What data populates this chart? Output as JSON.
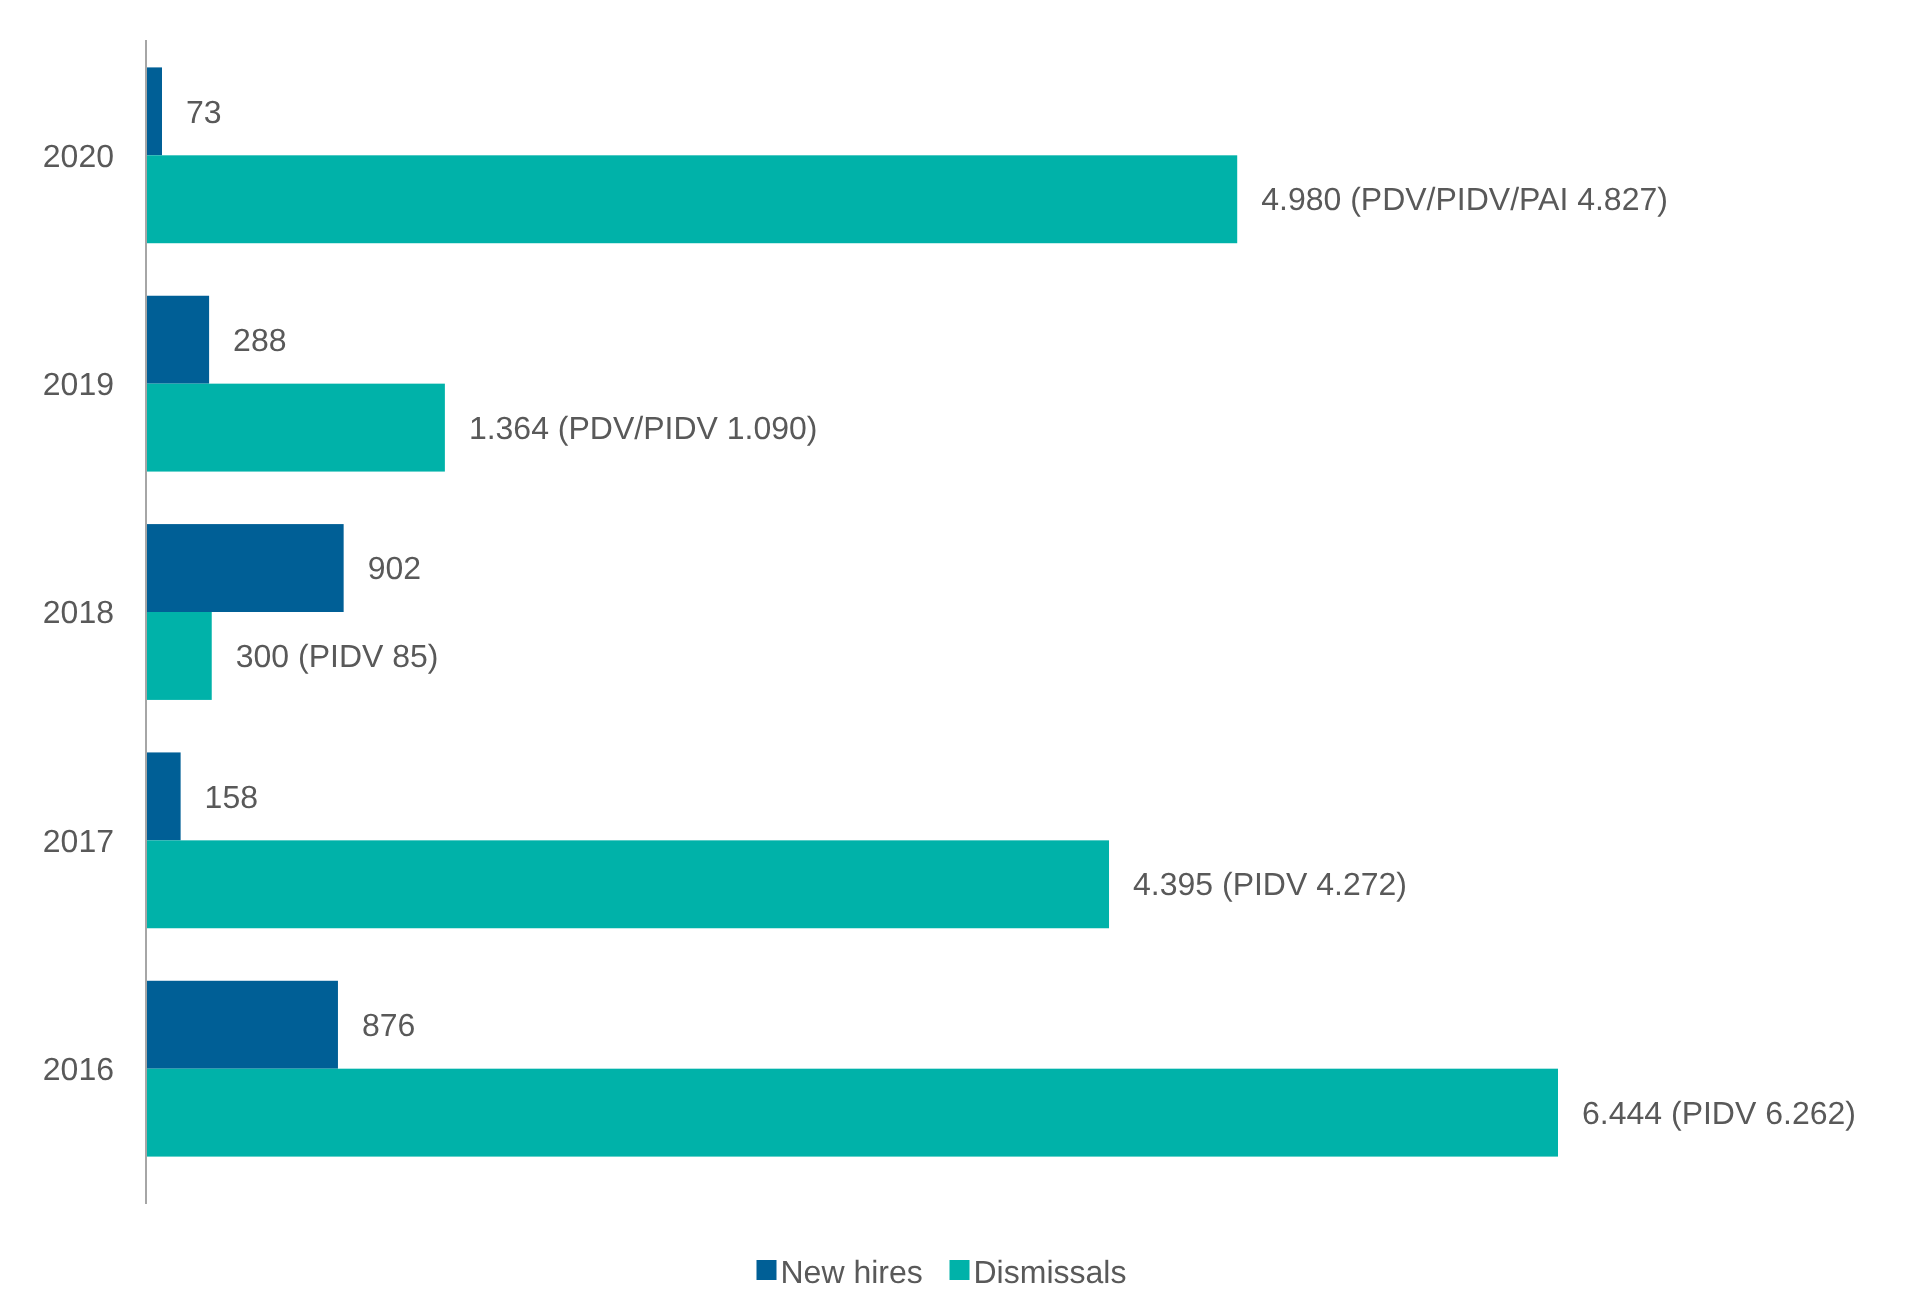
{
  "chart_data": {
    "type": "bar",
    "orientation": "horizontal",
    "categories": [
      "2020",
      "2019",
      "2018",
      "2017",
      "2016"
    ],
    "series": [
      {
        "name": "New hires",
        "color": "#005f96",
        "values": [
          73,
          288,
          902,
          158,
          876
        ],
        "value_labels": [
          "73",
          "288",
          "902",
          "158",
          "876"
        ]
      },
      {
        "name": "Dismissals",
        "color": "#00b2a9",
        "values": [
          4980,
          1364,
          300,
          4395,
          6444
        ],
        "value_labels": [
          "4.980 (PDV/PIDV/PAI 4.827)",
          "1.364 (PDV/PIDV 1.090)",
          "300 (PIDV 85)",
          "4.395 (PIDV 4.272)",
          "6.444 (PIDV 6.262)"
        ]
      }
    ],
    "legend": "bottom",
    "grid": false
  }
}
